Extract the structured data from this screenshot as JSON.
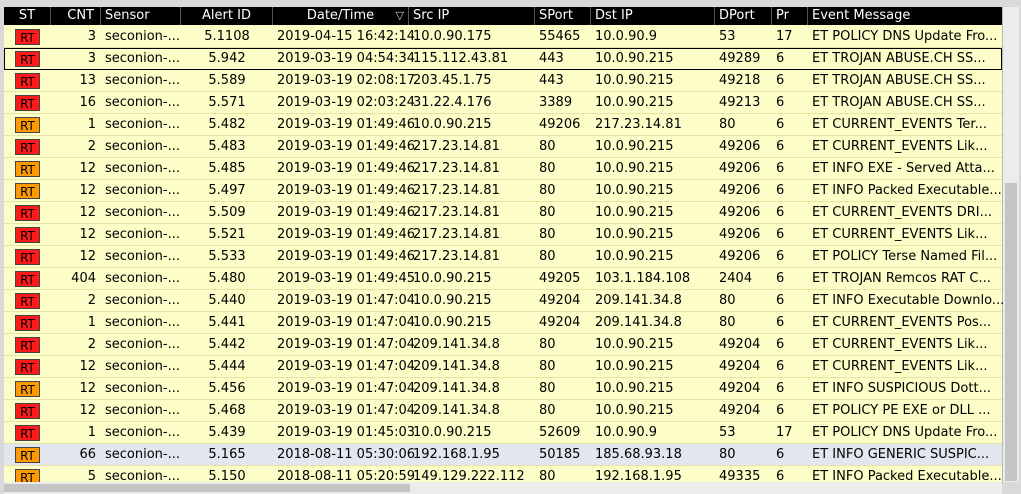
{
  "header": {
    "st": "ST",
    "cnt": "CNT",
    "sensor": "Sensor",
    "alert_id": "Alert ID",
    "datetime": "Date/Time",
    "sort_indicator": "▽",
    "src_ip": "Src IP",
    "sport": "SPort",
    "dst_ip": "Dst IP",
    "dport": "DPort",
    "pr": "Pr",
    "event": "Event Message"
  },
  "colors": {
    "red": "#ff1a1a",
    "orange": "#ff9900",
    "row_bg": "#fdfdc8",
    "highlight_bg": "#e2e6ee"
  },
  "rows": [
    {
      "st": "RT",
      "color": "red",
      "cnt": "3",
      "sensor": "seconion-...",
      "alert_id": "5.1108",
      "datetime": "2019-04-15 16:42:14",
      "src_ip": "10.0.90.175",
      "sport": "55465",
      "dst_ip": "10.0.90.9",
      "dport": "53",
      "pr": "17",
      "event": "ET POLICY DNS Update Fro..."
    },
    {
      "st": "RT",
      "color": "red",
      "cnt": "3",
      "sensor": "seconion-...",
      "alert_id": "5.942",
      "datetime": "2019-03-19 04:54:34",
      "src_ip": "115.112.43.81",
      "sport": "443",
      "dst_ip": "10.0.90.215",
      "dport": "49289",
      "pr": "6",
      "event": "ET TROJAN ABUSE.CH SS...",
      "selected": true
    },
    {
      "st": "RT",
      "color": "red",
      "cnt": "13",
      "sensor": "seconion-...",
      "alert_id": "5.589",
      "datetime": "2019-03-19 02:08:17",
      "src_ip": "203.45.1.75",
      "sport": "443",
      "dst_ip": "10.0.90.215",
      "dport": "49218",
      "pr": "6",
      "event": "ET TROJAN ABUSE.CH SS..."
    },
    {
      "st": "RT",
      "color": "red",
      "cnt": "16",
      "sensor": "seconion-...",
      "alert_id": "5.571",
      "datetime": "2019-03-19 02:03:24",
      "src_ip": "31.22.4.176",
      "sport": "3389",
      "dst_ip": "10.0.90.215",
      "dport": "49213",
      "pr": "6",
      "event": "ET TROJAN ABUSE.CH SS..."
    },
    {
      "st": "RT",
      "color": "orange",
      "cnt": "1",
      "sensor": "seconion-...",
      "alert_id": "5.482",
      "datetime": "2019-03-19 01:49:46",
      "src_ip": "10.0.90.215",
      "sport": "49206",
      "dst_ip": "217.23.14.81",
      "dport": "80",
      "pr": "6",
      "event": "ET CURRENT_EVENTS Ter..."
    },
    {
      "st": "RT",
      "color": "red",
      "cnt": "2",
      "sensor": "seconion-...",
      "alert_id": "5.483",
      "datetime": "2019-03-19 01:49:46",
      "src_ip": "217.23.14.81",
      "sport": "80",
      "dst_ip": "10.0.90.215",
      "dport": "49206",
      "pr": "6",
      "event": "ET CURRENT_EVENTS Lik..."
    },
    {
      "st": "RT",
      "color": "orange",
      "cnt": "12",
      "sensor": "seconion-...",
      "alert_id": "5.485",
      "datetime": "2019-03-19 01:49:46",
      "src_ip": "217.23.14.81",
      "sport": "80",
      "dst_ip": "10.0.90.215",
      "dport": "49206",
      "pr": "6",
      "event": "ET INFO EXE - Served Atta..."
    },
    {
      "st": "RT",
      "color": "orange",
      "cnt": "12",
      "sensor": "seconion-...",
      "alert_id": "5.497",
      "datetime": "2019-03-19 01:49:46",
      "src_ip": "217.23.14.81",
      "sport": "80",
      "dst_ip": "10.0.90.215",
      "dport": "49206",
      "pr": "6",
      "event": "ET INFO Packed Executable..."
    },
    {
      "st": "RT",
      "color": "red",
      "cnt": "12",
      "sensor": "seconion-...",
      "alert_id": "5.509",
      "datetime": "2019-03-19 01:49:46",
      "src_ip": "217.23.14.81",
      "sport": "80",
      "dst_ip": "10.0.90.215",
      "dport": "49206",
      "pr": "6",
      "event": "ET CURRENT_EVENTS DRI..."
    },
    {
      "st": "RT",
      "color": "red",
      "cnt": "12",
      "sensor": "seconion-...",
      "alert_id": "5.521",
      "datetime": "2019-03-19 01:49:46",
      "src_ip": "217.23.14.81",
      "sport": "80",
      "dst_ip": "10.0.90.215",
      "dport": "49206",
      "pr": "6",
      "event": "ET CURRENT_EVENTS Lik..."
    },
    {
      "st": "RT",
      "color": "red",
      "cnt": "12",
      "sensor": "seconion-...",
      "alert_id": "5.533",
      "datetime": "2019-03-19 01:49:46",
      "src_ip": "217.23.14.81",
      "sport": "80",
      "dst_ip": "10.0.90.215",
      "dport": "49206",
      "pr": "6",
      "event": "ET POLICY Terse Named Fil..."
    },
    {
      "st": "RT",
      "color": "red",
      "cnt": "404",
      "sensor": "seconion-...",
      "alert_id": "5.480",
      "datetime": "2019-03-19 01:49:45",
      "src_ip": "10.0.90.215",
      "sport": "49205",
      "dst_ip": "103.1.184.108",
      "dport": "2404",
      "pr": "6",
      "event": "ET TROJAN Remcos RAT C..."
    },
    {
      "st": "RT",
      "color": "red",
      "cnt": "2",
      "sensor": "seconion-...",
      "alert_id": "5.440",
      "datetime": "2019-03-19 01:47:04",
      "src_ip": "10.0.90.215",
      "sport": "49204",
      "dst_ip": "209.141.34.8",
      "dport": "80",
      "pr": "6",
      "event": "ET INFO Executable Downlo..."
    },
    {
      "st": "RT",
      "color": "red",
      "cnt": "1",
      "sensor": "seconion-...",
      "alert_id": "5.441",
      "datetime": "2019-03-19 01:47:04",
      "src_ip": "10.0.90.215",
      "sport": "49204",
      "dst_ip": "209.141.34.8",
      "dport": "80",
      "pr": "6",
      "event": "ET CURRENT_EVENTS Pos..."
    },
    {
      "st": "RT",
      "color": "red",
      "cnt": "2",
      "sensor": "seconion-...",
      "alert_id": "5.442",
      "datetime": "2019-03-19 01:47:04",
      "src_ip": "209.141.34.8",
      "sport": "80",
      "dst_ip": "10.0.90.215",
      "dport": "49204",
      "pr": "6",
      "event": "ET CURRENT_EVENTS Lik..."
    },
    {
      "st": "RT",
      "color": "red",
      "cnt": "12",
      "sensor": "seconion-...",
      "alert_id": "5.444",
      "datetime": "2019-03-19 01:47:04",
      "src_ip": "209.141.34.8",
      "sport": "80",
      "dst_ip": "10.0.90.215",
      "dport": "49204",
      "pr": "6",
      "event": "ET CURRENT_EVENTS Lik..."
    },
    {
      "st": "RT",
      "color": "orange",
      "cnt": "12",
      "sensor": "seconion-...",
      "alert_id": "5.456",
      "datetime": "2019-03-19 01:47:04",
      "src_ip": "209.141.34.8",
      "sport": "80",
      "dst_ip": "10.0.90.215",
      "dport": "49204",
      "pr": "6",
      "event": "ET INFO SUSPICIOUS Dott..."
    },
    {
      "st": "RT",
      "color": "red",
      "cnt": "12",
      "sensor": "seconion-...",
      "alert_id": "5.468",
      "datetime": "2019-03-19 01:47:04",
      "src_ip": "209.141.34.8",
      "sport": "80",
      "dst_ip": "10.0.90.215",
      "dport": "49204",
      "pr": "6",
      "event": "ET POLICY PE EXE or DLL ..."
    },
    {
      "st": "RT",
      "color": "red",
      "cnt": "1",
      "sensor": "seconion-...",
      "alert_id": "5.439",
      "datetime": "2019-03-19 01:45:03",
      "src_ip": "10.0.90.215",
      "sport": "52609",
      "dst_ip": "10.0.90.9",
      "dport": "53",
      "pr": "17",
      "event": "ET POLICY DNS Update Fro..."
    },
    {
      "st": "RT",
      "color": "orange",
      "cnt": "66",
      "sensor": "seconion-...",
      "alert_id": "5.165",
      "datetime": "2018-08-11 05:30:06",
      "src_ip": "192.168.1.95",
      "sport": "50185",
      "dst_ip": "185.68.93.18",
      "dport": "80",
      "pr": "6",
      "event": "ET INFO GENERIC SUSPIC...",
      "highlight": true
    },
    {
      "st": "RT",
      "color": "orange",
      "cnt": "5",
      "sensor": "seconion-...",
      "alert_id": "5.150",
      "datetime": "2018-08-11 05:20:59",
      "src_ip": "149.129.222.112",
      "sport": "80",
      "dst_ip": "192.168.1.95",
      "dport": "49335",
      "pr": "6",
      "event": "ET INFO Packed Executable..."
    }
  ]
}
